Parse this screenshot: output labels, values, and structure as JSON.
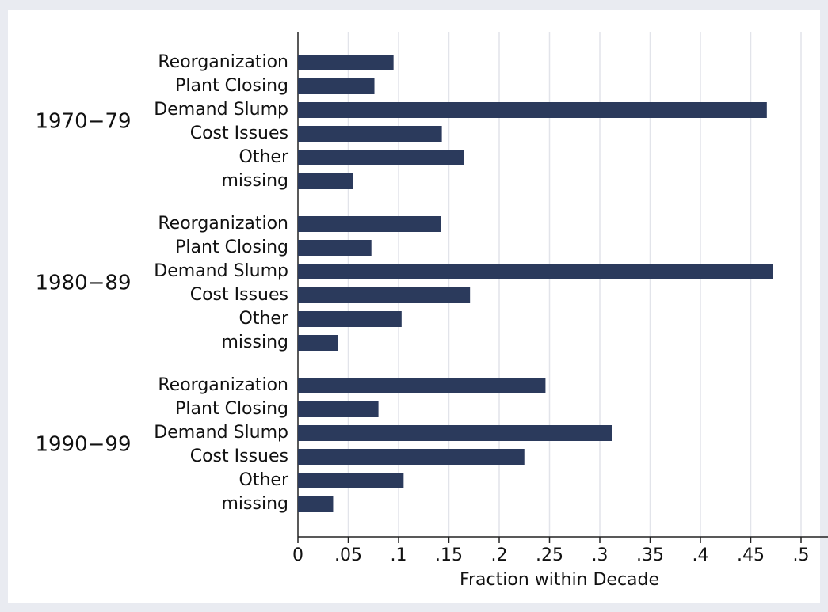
{
  "chart_data": {
    "type": "grouped-hbar",
    "x_label": "Fraction within Decade",
    "color": "#2b3a5c",
    "grid": true,
    "xlim": [
      0,
      0.52
    ],
    "xticks": [
      0,
      {
        "value": 0.05,
        "label": ".05"
      },
      {
        "value": 0.1,
        "label": ".1"
      },
      {
        "value": 0.15,
        "label": ".15"
      },
      {
        "value": 0.2,
        "label": ".2"
      },
      {
        "value": 0.25,
        "label": ".25"
      },
      {
        "value": 0.3,
        "label": ".3"
      },
      {
        "value": 0.35,
        "label": ".35"
      },
      {
        "value": 0.4,
        "label": ".4"
      },
      {
        "value": 0.45,
        "label": ".45"
      },
      {
        "value": 0.5,
        "label": ".5"
      }
    ],
    "groups": [
      {
        "name": "1970−79",
        "categories": [
          "Reorganization",
          "Plant Closing",
          "Demand Slump",
          "Cost Issues",
          "Other",
          "missing"
        ],
        "values": [
          0.095,
          0.076,
          0.466,
          0.143,
          0.165,
          0.055
        ]
      },
      {
        "name": "1980−89",
        "categories": [
          "Reorganization",
          "Plant Closing",
          "Demand Slump",
          "Cost Issues",
          "Other",
          "missing"
        ],
        "values": [
          0.142,
          0.073,
          0.472,
          0.171,
          0.103,
          0.04
        ]
      },
      {
        "name": "1990−99",
        "categories": [
          "Reorganization",
          "Plant Closing",
          "Demand Slump",
          "Cost Issues",
          "Other",
          "missing"
        ],
        "values": [
          0.246,
          0.08,
          0.312,
          0.225,
          0.105,
          0.035
        ]
      }
    ]
  }
}
